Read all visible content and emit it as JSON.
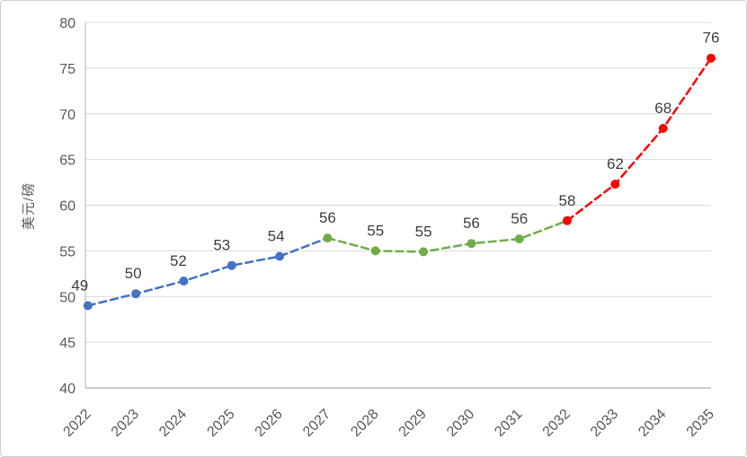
{
  "chart_data": {
    "type": "line",
    "title": "",
    "xlabel": "",
    "ylabel": "美元/磅",
    "categories": [
      "2022",
      "2023",
      "2024",
      "2025",
      "2026",
      "2027",
      "2028",
      "2029",
      "2030",
      "2031",
      "2032",
      "2033",
      "2034",
      "2035"
    ],
    "values": [
      49.0,
      50.3,
      51.7,
      53.4,
      54.4,
      56.4,
      55.0,
      54.9,
      55.8,
      56.3,
      58.3,
      62.3,
      68.4,
      76.1
    ],
    "data_labels": [
      "49",
      "50",
      "52",
      "53",
      "54",
      "56",
      "55",
      "55",
      "56",
      "56",
      "58",
      "62",
      "68",
      "76"
    ],
    "segments": [
      {
        "name": "segment-blue",
        "color": "#4472C4",
        "from": 0,
        "to": 5
      },
      {
        "name": "segment-green",
        "color": "#70AD47",
        "from": 5,
        "to": 10
      },
      {
        "name": "segment-red",
        "color": "#FF0000",
        "from": 10,
        "to": 13
      }
    ],
    "line_style": "dashed",
    "marker": "circle",
    "ylim": [
      40,
      80
    ],
    "ytick_step": 5,
    "yticks": [
      "40",
      "45",
      "50",
      "55",
      "60",
      "65",
      "70",
      "75",
      "80"
    ],
    "grid": true,
    "legend_position": "none",
    "colors": {
      "gridline": "#D9D9D9",
      "axis_line": "#AFAFAF",
      "tick_label": "#595959",
      "data_label": "#404040",
      "background": "#FFFFFF"
    }
  }
}
